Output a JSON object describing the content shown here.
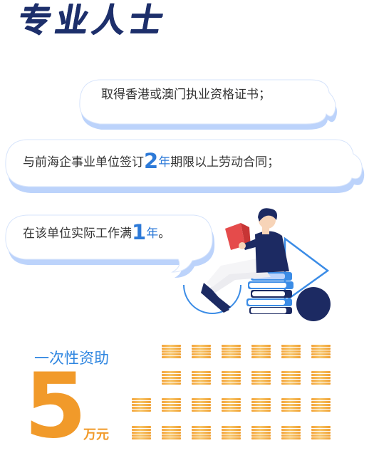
{
  "title": "专业人士",
  "requirements": [
    {
      "text": "取得香港或澳门执业资格证书；"
    },
    {
      "prefix": "与前海企事业单位签订",
      "number": "2",
      "unit": "年",
      "suffix": "期限以上劳动合同；"
    },
    {
      "prefix": "在该单位实际工作满",
      "number": "1",
      "unit": "年",
      "suffix": "。"
    }
  ],
  "subsidy": {
    "label": "一次性资助",
    "amount": "5",
    "unit": "万元"
  },
  "colors": {
    "title": "#1d2f6b",
    "bubble_shadow": "#bcd3fb",
    "accent_blue": "#2d7ad8",
    "amount_orange": "#f19a2a"
  }
}
